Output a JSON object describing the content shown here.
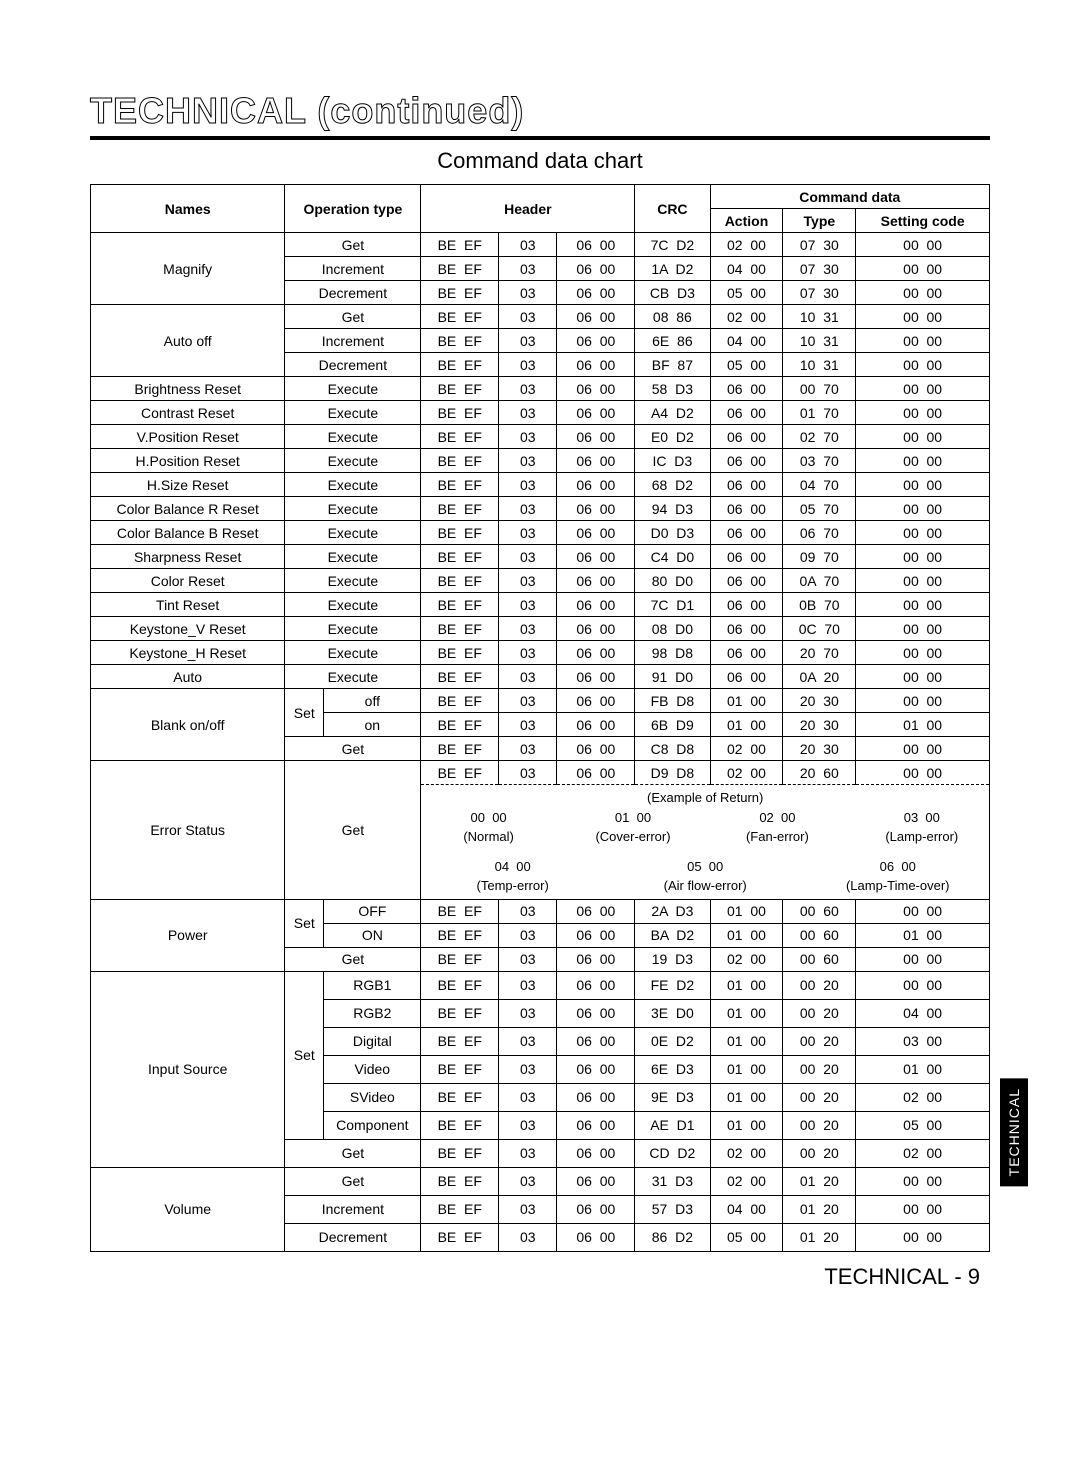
{
  "title": "TECHNICAL (continued)",
  "subtitle": "Command data chart",
  "footer": "TECHNICAL - 9",
  "sideTab": "TECHNICAL",
  "headers": {
    "names": "Names",
    "opType": "Operation type",
    "header": "Header",
    "commandData": "Command data",
    "crc": "CRC",
    "action": "Action",
    "type": "Type",
    "setting": "Setting code"
  },
  "rows": [
    {
      "name": "Magnify",
      "nameSpan": 3,
      "op1": "",
      "op1Span": 2,
      "op2": "Get",
      "h1": "BE  EF",
      "h2": "03",
      "h3": "06  00",
      "crc": "7C  D2",
      "action": "02  00",
      "type": "07  30",
      "set": "00  00"
    },
    {
      "op1": "",
      "op1Span": 2,
      "op2": "Increment",
      "h1": "BE  EF",
      "h2": "03",
      "h3": "06  00",
      "crc": "1A  D2",
      "action": "04  00",
      "type": "07  30",
      "set": "00  00"
    },
    {
      "op1": "",
      "op1Span": 2,
      "op2": "Decrement",
      "h1": "BE  EF",
      "h2": "03",
      "h3": "06  00",
      "crc": "CB  D3",
      "action": "05  00",
      "type": "07  30",
      "set": "00  00"
    },
    {
      "name": "Auto off",
      "nameSpan": 3,
      "op1": "",
      "op1Span": 2,
      "op2": "Get",
      "h1": "BE  EF",
      "h2": "03",
      "h3": "06  00",
      "crc": "08  86",
      "action": "02  00",
      "type": "10  31",
      "set": "00  00"
    },
    {
      "op1": "",
      "op1Span": 2,
      "op2": "Increment",
      "h1": "BE  EF",
      "h2": "03",
      "h3": "06  00",
      "crc": "6E  86",
      "action": "04  00",
      "type": "10  31",
      "set": "00  00"
    },
    {
      "op1": "",
      "op1Span": 2,
      "op2": "Decrement",
      "h1": "BE  EF",
      "h2": "03",
      "h3": "06  00",
      "crc": "BF  87",
      "action": "05  00",
      "type": "10  31",
      "set": "00  00"
    },
    {
      "name": "Brightness Reset",
      "op1": "",
      "op1Span": 2,
      "op2": "Execute",
      "h1": "BE  EF",
      "h2": "03",
      "h3": "06  00",
      "crc": "58  D3",
      "action": "06  00",
      "type": "00  70",
      "set": "00  00"
    },
    {
      "name": "Contrast Reset",
      "op1": "",
      "op1Span": 2,
      "op2": "Execute",
      "h1": "BE  EF",
      "h2": "03",
      "h3": "06  00",
      "crc": "A4  D2",
      "action": "06  00",
      "type": "01  70",
      "set": "00  00"
    },
    {
      "name": "V.Position Reset",
      "op1": "",
      "op1Span": 2,
      "op2": "Execute",
      "h1": "BE  EF",
      "h2": "03",
      "h3": "06  00",
      "crc": "E0  D2",
      "action": "06  00",
      "type": "02  70",
      "set": "00  00"
    },
    {
      "name": "H.Position Reset",
      "op1": "",
      "op1Span": 2,
      "op2": "Execute",
      "h1": "BE  EF",
      "h2": "03",
      "h3": "06  00",
      "crc": "IC  D3",
      "action": "06  00",
      "type": "03  70",
      "set": "00  00"
    },
    {
      "name": "H.Size Reset",
      "op1": "",
      "op1Span": 2,
      "op2": "Execute",
      "h1": "BE  EF",
      "h2": "03",
      "h3": "06  00",
      "crc": "68  D2",
      "action": "06  00",
      "type": "04  70",
      "set": "00  00"
    },
    {
      "name": "Color Balance R Reset",
      "op1": "",
      "op1Span": 2,
      "op2": "Execute",
      "h1": "BE  EF",
      "h2": "03",
      "h3": "06  00",
      "crc": "94  D3",
      "action": "06  00",
      "type": "05  70",
      "set": "00  00"
    },
    {
      "name": "Color Balance B Reset",
      "op1": "",
      "op1Span": 2,
      "op2": "Execute",
      "h1": "BE  EF",
      "h2": "03",
      "h3": "06  00",
      "crc": "D0  D3",
      "action": "06  00",
      "type": "06  70",
      "set": "00  00"
    },
    {
      "name": "Sharpness Reset",
      "op1": "",
      "op1Span": 2,
      "op2": "Execute",
      "h1": "BE  EF",
      "h2": "03",
      "h3": "06  00",
      "crc": "C4  D0",
      "action": "06  00",
      "type": "09  70",
      "set": "00  00"
    },
    {
      "name": "Color Reset",
      "op1": "",
      "op1Span": 2,
      "op2": "Execute",
      "h1": "BE  EF",
      "h2": "03",
      "h3": "06  00",
      "crc": "80  D0",
      "action": "06  00",
      "type": "0A  70",
      "set": "00  00"
    },
    {
      "name": "Tint Reset",
      "op1": "",
      "op1Span": 2,
      "op2": "Execute",
      "h1": "BE  EF",
      "h2": "03",
      "h3": "06  00",
      "crc": "7C  D1",
      "action": "06  00",
      "type": "0B  70",
      "set": "00  00"
    },
    {
      "name": "Keystone_V  Reset",
      "op1": "",
      "op1Span": 2,
      "op2": "Execute",
      "h1": "BE  EF",
      "h2": "03",
      "h3": "06  00",
      "crc": "08  D0",
      "action": "06  00",
      "type": "0C  70",
      "set": "00  00"
    },
    {
      "name": "Keystone_H  Reset",
      "op1": "",
      "op1Span": 2,
      "op2": "Execute",
      "h1": "BE  EF",
      "h2": "03",
      "h3": "06  00",
      "crc": "98  D8",
      "action": "06  00",
      "type": "20  70",
      "set": "00  00"
    },
    {
      "name": "Auto",
      "op1": "",
      "op1Span": 2,
      "op2": "Execute",
      "h1": "BE  EF",
      "h2": "03",
      "h3": "06  00",
      "crc": "91  D0",
      "action": "06  00",
      "type": "0A  20",
      "set": "00  00"
    },
    {
      "name": "Blank on/off",
      "nameSpan": 3,
      "op1": "Set",
      "op1Span": 1,
      "op1RowSpan": 2,
      "op2": "off",
      "h1": "BE  EF",
      "h2": "03",
      "h3": "06  00",
      "crc": "FB  D8",
      "action": "01  00",
      "type": "20  30",
      "set": "00  00"
    },
    {
      "op1": null,
      "op2": "on",
      "h1": "BE  EF",
      "h2": "03",
      "h3": "06  00",
      "crc": "6B  D9",
      "action": "01  00",
      "type": "20  30",
      "set": "01  00"
    },
    {
      "op1": "",
      "op1Span": 2,
      "op2": "Get",
      "h1": "BE  EF",
      "h2": "03",
      "h3": "06  00",
      "crc": "C8  D8",
      "action": "02  00",
      "type": "20  30",
      "set": "00  00"
    },
    {
      "name": "Error Status",
      "nameSpan": 2,
      "op1": "",
      "op1Span": 2,
      "op1RowSpan": 2,
      "op2": "Get",
      "op2RowSpan": 2,
      "h1": "BE  EF",
      "h2": "03",
      "h3": "06  00",
      "crc": "D9  D8",
      "action": "02  00",
      "type": "20  60",
      "set": "00  00",
      "errorTop": true
    },
    {
      "errorBlock": true
    },
    {
      "name": "Power",
      "nameSpan": 3,
      "op1": "Set",
      "op1Span": 1,
      "op1RowSpan": 2,
      "op2": "OFF",
      "h1": "BE  EF",
      "h2": "03",
      "h3": "06  00",
      "crc": "2A  D3",
      "action": "01  00",
      "type": "00  60",
      "set": "00  00"
    },
    {
      "op1": null,
      "op2": "ON",
      "h1": "BE  EF",
      "h2": "03",
      "h3": "06  00",
      "crc": "BA  D2",
      "action": "01  00",
      "type": "00  60",
      "set": "01  00"
    },
    {
      "op1": "",
      "op1Span": 2,
      "op2": "Get",
      "h1": "BE  EF",
      "h2": "03",
      "h3": "06  00",
      "crc": "19  D3",
      "action": "02  00",
      "type": "00  60",
      "set": "00  00"
    },
    {
      "name": "Input Source",
      "nameSpan": 7,
      "op1": "Set",
      "op1Span": 1,
      "op1RowSpan": 6,
      "op2": "RGB1",
      "h1": "BE  EF",
      "h2": "03",
      "h3": "06  00",
      "crc": "FE  D2",
      "action": "01  00",
      "type": "00  20",
      "set": "00  00",
      "tall": true
    },
    {
      "op1": null,
      "op2": "RGB2",
      "h1": "BE  EF",
      "h2": "03",
      "h3": "06  00",
      "crc": "3E  D0",
      "action": "01  00",
      "type": "00  20",
      "set": "04  00",
      "tall": true
    },
    {
      "op1": null,
      "op2": "Digital",
      "h1": "BE  EF",
      "h2": "03",
      "h3": "06  00",
      "crc": "0E  D2",
      "action": "01  00",
      "type": "00  20",
      "set": "03  00",
      "tall": true
    },
    {
      "op1": null,
      "op2": "Video",
      "h1": "BE  EF",
      "h2": "03",
      "h3": "06  00",
      "crc": "6E  D3",
      "action": "01  00",
      "type": "00  20",
      "set": "01  00",
      "tall": true
    },
    {
      "op1": null,
      "op2": "SVideo",
      "h1": "BE  EF",
      "h2": "03",
      "h3": "06  00",
      "crc": "9E  D3",
      "action": "01  00",
      "type": "00  20",
      "set": "02  00",
      "tall": true
    },
    {
      "op1": null,
      "op2": "Component",
      "h1": "BE  EF",
      "h2": "03",
      "h3": "06  00",
      "crc": "AE  D1",
      "action": "01  00",
      "type": "00  20",
      "set": "05  00",
      "tall": true
    },
    {
      "op1": "",
      "op1Span": 2,
      "op2": "Get",
      "h1": "BE  EF",
      "h2": "03",
      "h3": "06  00",
      "crc": "CD  D2",
      "action": "02  00",
      "type": "00  20",
      "set": "02  00",
      "tall": true
    },
    {
      "name": "Volume",
      "nameSpan": 3,
      "op1": "",
      "op1Span": 2,
      "op2": "Get",
      "h1": "BE  EF",
      "h2": "03",
      "h3": "06  00",
      "crc": "31  D3",
      "action": "02  00",
      "type": "01  20",
      "set": "00  00",
      "tall": true
    },
    {
      "op1": "",
      "op1Span": 2,
      "op2": "Increment",
      "h1": "BE  EF",
      "h2": "03",
      "h3": "06  00",
      "crc": "57  D3",
      "action": "04  00",
      "type": "01  20",
      "set": "00  00",
      "tall": true
    },
    {
      "op1": "",
      "op1Span": 2,
      "op2": "Decrement",
      "h1": "BE  EF",
      "h2": "03",
      "h3": "06  00",
      "crc": "86  D2",
      "action": "05  00",
      "type": "01  20",
      "set": "00  00",
      "tall": true
    }
  ],
  "errorBlock": {
    "label": "(Example of Return)",
    "items1": [
      {
        "code": "00  00",
        "desc": "(Normal)"
      },
      {
        "code": "01  00",
        "desc": "(Cover-error)"
      },
      {
        "code": "02  00",
        "desc": "(Fan-error)"
      },
      {
        "code": "03  00",
        "desc": "(Lamp-error)"
      }
    ],
    "items2": [
      {
        "code": "04  00",
        "desc": "(Temp-error)"
      },
      {
        "code": "05  00",
        "desc": "(Air flow-error)"
      },
      {
        "code": "06  00",
        "desc": "(Lamp-Time-over)"
      }
    ]
  }
}
